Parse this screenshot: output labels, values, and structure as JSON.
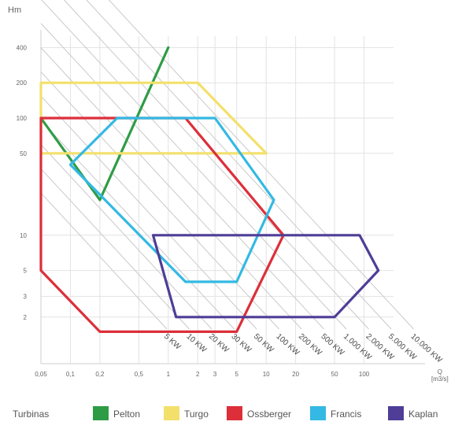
{
  "chart_data": {
    "type": "area",
    "xlabel": "Q",
    "xunit": "[m3/s]",
    "ylabel": "Hm",
    "x_scale": "log",
    "y_scale": "log",
    "xlim": [
      0.05,
      200
    ],
    "ylim": [
      0.8,
      500
    ],
    "x_ticks": [
      {
        "value": 0.05,
        "label": "0,05"
      },
      {
        "value": 0.1,
        "label": "0,1"
      },
      {
        "value": 0.2,
        "label": "0,2"
      },
      {
        "value": 0.5,
        "label": "0,5"
      },
      {
        "value": 1,
        "label": "1"
      },
      {
        "value": 2,
        "label": "2"
      },
      {
        "value": 3,
        "label": "3"
      },
      {
        "value": 5,
        "label": "5"
      },
      {
        "value": 10,
        "label": "10"
      },
      {
        "value": 20,
        "label": "20"
      },
      {
        "value": 50,
        "label": "50"
      },
      {
        "value": 100,
        "label": "100"
      }
    ],
    "y_ticks": [
      {
        "value": 2,
        "label": "2"
      },
      {
        "value": 3,
        "label": "3"
      },
      {
        "value": 5,
        "label": "5"
      },
      {
        "value": 10,
        "label": "10"
      },
      {
        "value": 50,
        "label": "50"
      },
      {
        "value": 100,
        "label": "100"
      },
      {
        "value": 200,
        "label": "200"
      },
      {
        "value": 400,
        "label": "400"
      }
    ],
    "power_lines": [
      "5 KW",
      "10 KW",
      "20 KW",
      "30 KW",
      "50 KW",
      "100 KW",
      "200 KW",
      "500 KW",
      "1.000 KW",
      "2.000 KW",
      "5.000 KW",
      "10.000 KW"
    ],
    "grid": true,
    "legend_title": "Turbinas",
    "legend_position": "bottom",
    "series": [
      {
        "name": "Pelton",
        "color": "#2e9c45",
        "points": [
          [
            1,
            400
          ],
          [
            0.2,
            20
          ],
          [
            0.05,
            100
          ]
        ]
      },
      {
        "name": "Turgo",
        "color": "#f3e06b",
        "points": [
          [
            0.05,
            200
          ],
          [
            2,
            200
          ],
          [
            10,
            50
          ],
          [
            0.05,
            50
          ]
        ]
      },
      {
        "name": "Ossberger",
        "color": "#dc2f3a",
        "points": [
          [
            0.05,
            100
          ],
          [
            1.5,
            100
          ],
          [
            15,
            10
          ],
          [
            5,
            1.5
          ],
          [
            0.2,
            1.5
          ],
          [
            0.05,
            5
          ]
        ]
      },
      {
        "name": "Francis",
        "color": "#33b9e3",
        "points": [
          [
            0.1,
            40
          ],
          [
            0.3,
            100
          ],
          [
            3,
            100
          ],
          [
            12,
            20
          ],
          [
            5,
            4
          ],
          [
            1.5,
            4
          ]
        ]
      },
      {
        "name": "Kaplan",
        "color": "#4f3d97",
        "points": [
          [
            0.7,
            10
          ],
          [
            90,
            10
          ],
          [
            140,
            5
          ],
          [
            50,
            2
          ],
          [
            1.2,
            2
          ]
        ]
      }
    ]
  }
}
